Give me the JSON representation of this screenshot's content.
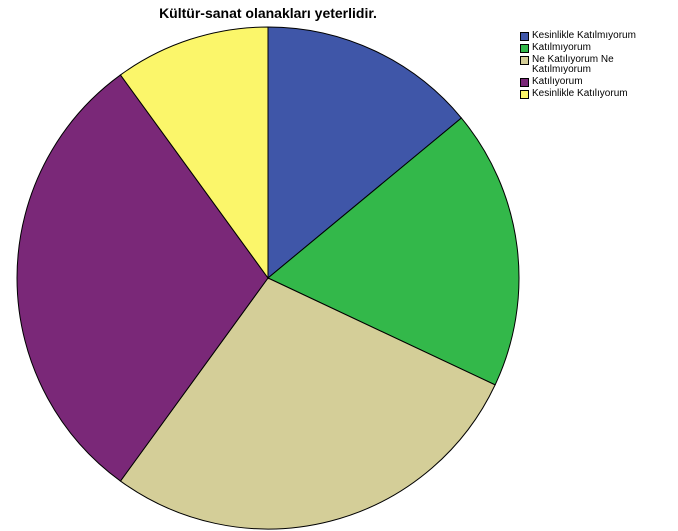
{
  "chart_data": {
    "type": "pie",
    "title": "Kültür-sanat olanakları yeterlidir.",
    "legend_position": "top-right",
    "categories": [
      "Kesinlikle Katılmıyorum",
      "Katılmıyorum",
      "Ne Katılıyorum Ne\nKatılmıyorum",
      "Katılıyorum",
      "Kesinlikle Katılıyorum"
    ],
    "values": [
      14,
      18,
      28,
      30,
      10
    ],
    "colors": [
      "#3f56a8",
      "#33b84a",
      "#d4ce98",
      "#7a2878",
      "#fbf66a"
    ],
    "start_angle_deg": 0,
    "direction": "clockwise"
  }
}
